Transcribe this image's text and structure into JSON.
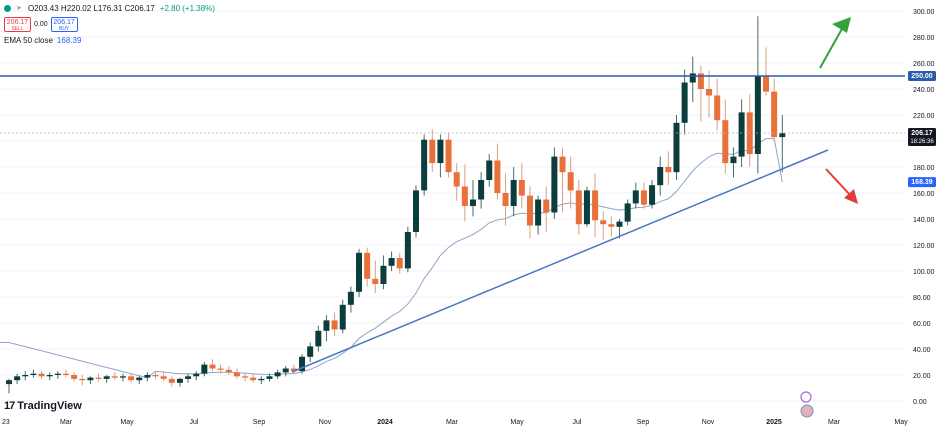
{
  "legend": {
    "ohlc": "O203.43 H220.02 L176.31 C206.17",
    "change": "+2.80 (+1.38%)",
    "sell_price": "206.17",
    "sell_label": "SELL",
    "spread": "0.00",
    "buy_price": "206.17",
    "buy_label": "BUY",
    "ema_label": "EMA 50 close",
    "ema_value": "168.39"
  },
  "branding": {
    "logo_text": "TradingView",
    "logo_mark": "17"
  },
  "price_tags": {
    "resistance": "250.00",
    "last_price": "206.17",
    "countdown": "18:26:36",
    "ema": "168.39"
  },
  "colors": {
    "up": "#089981",
    "down": "#f23645",
    "candle_up": "#0b3d3d",
    "candle_down": "#e8703a",
    "ema": "#90a4c8",
    "trend": "#4a78c2",
    "resistance": "#2a5ca8",
    "arrow_up": "#35a33a",
    "arrow_down": "#e23b3b"
  },
  "chart_data": {
    "type": "candlestick",
    "interval": "1W",
    "y_axis": {
      "ticks": [
        0,
        20,
        40,
        60,
        80,
        100,
        120,
        140,
        160,
        180,
        200,
        220,
        240,
        260,
        280,
        300
      ],
      "ylim": [
        -10,
        305
      ],
      "position": "right"
    },
    "x_axis": {
      "labels": [
        "23",
        "Mar",
        "May",
        "Jul",
        "Sep",
        "Nov",
        "2024",
        "Mar",
        "May",
        "Jul",
        "Sep",
        "Nov",
        "2025",
        "Mar",
        "May"
      ]
    },
    "resistance_level": 250,
    "last_price": 206.17,
    "ema_last": 168.39,
    "candles": [
      [
        13,
        17,
        6,
        16
      ],
      [
        16,
        21,
        13,
        19
      ],
      [
        19,
        23,
        16,
        20
      ],
      [
        20,
        24,
        18,
        21
      ],
      [
        21,
        23,
        17,
        19
      ],
      [
        19,
        22,
        16,
        20
      ],
      [
        20,
        23,
        17,
        21
      ],
      [
        21,
        24,
        18,
        20
      ],
      [
        20,
        22,
        15,
        17
      ],
      [
        17,
        20,
        12,
        16
      ],
      [
        16,
        19,
        13,
        18
      ],
      [
        18,
        21,
        15,
        17
      ],
      [
        17,
        20,
        14,
        19
      ],
      [
        19,
        22,
        16,
        18
      ],
      [
        18,
        21,
        15,
        19
      ],
      [
        19,
        21,
        14,
        16
      ],
      [
        16,
        19,
        13,
        18
      ],
      [
        18,
        22,
        15,
        20
      ],
      [
        20,
        23,
        17,
        19
      ],
      [
        19,
        22,
        15,
        17
      ],
      [
        17,
        19,
        11,
        14
      ],
      [
        14,
        18,
        11,
        17
      ],
      [
        17,
        21,
        14,
        19
      ],
      [
        19,
        23,
        16,
        21
      ],
      [
        21,
        30,
        19,
        28
      ],
      [
        28,
        32,
        23,
        25
      ],
      [
        25,
        28,
        21,
        24
      ],
      [
        24,
        27,
        20,
        22
      ],
      [
        22,
        25,
        17,
        19
      ],
      [
        19,
        22,
        15,
        18
      ],
      [
        18,
        21,
        14,
        16
      ],
      [
        16,
        19,
        13,
        17
      ],
      [
        17,
        21,
        15,
        19
      ],
      [
        19,
        24,
        17,
        22
      ],
      [
        22,
        27,
        19,
        25
      ],
      [
        25,
        28,
        21,
        23
      ],
      [
        23,
        36,
        21,
        34
      ],
      [
        34,
        45,
        30,
        42
      ],
      [
        42,
        58,
        38,
        54
      ],
      [
        54,
        66,
        46,
        62
      ],
      [
        62,
        68,
        50,
        55
      ],
      [
        55,
        78,
        52,
        74
      ],
      [
        74,
        88,
        68,
        84
      ],
      [
        84,
        117,
        80,
        114
      ],
      [
        114,
        118,
        88,
        94
      ],
      [
        94,
        108,
        83,
        90
      ],
      [
        90,
        112,
        86,
        104
      ],
      [
        104,
        115,
        100,
        110
      ],
      [
        110,
        114,
        98,
        102
      ],
      [
        102,
        134,
        99,
        130
      ],
      [
        130,
        166,
        126,
        162
      ],
      [
        162,
        205,
        158,
        201
      ],
      [
        201,
        209,
        176,
        183
      ],
      [
        183,
        205,
        172,
        201
      ],
      [
        201,
        206,
        172,
        176
      ],
      [
        176,
        183,
        154,
        165
      ],
      [
        165,
        182,
        138,
        150
      ],
      [
        150,
        170,
        142,
        155
      ],
      [
        155,
        176,
        148,
        170
      ],
      [
        170,
        190,
        165,
        185
      ],
      [
        185,
        198,
        155,
        160
      ],
      [
        160,
        175,
        135,
        150
      ],
      [
        150,
        180,
        142,
        170
      ],
      [
        170,
        183,
        148,
        158
      ],
      [
        158,
        165,
        125,
        135
      ],
      [
        135,
        158,
        128,
        155
      ],
      [
        155,
        165,
        130,
        145
      ],
      [
        145,
        195,
        140,
        188
      ],
      [
        188,
        195,
        145,
        176
      ],
      [
        176,
        188,
        148,
        162
      ],
      [
        162,
        170,
        128,
        136
      ],
      [
        136,
        165,
        134,
        162
      ],
      [
        162,
        175,
        126,
        139
      ],
      [
        139,
        146,
        124,
        136
      ],
      [
        136,
        142,
        126,
        134
      ],
      [
        134,
        140,
        125,
        138
      ],
      [
        138,
        155,
        135,
        152
      ],
      [
        152,
        168,
        148,
        162
      ],
      [
        162,
        168,
        148,
        151
      ],
      [
        151,
        170,
        148,
        166
      ],
      [
        166,
        188,
        158,
        180
      ],
      [
        180,
        192,
        166,
        176
      ],
      [
        176,
        220,
        170,
        214
      ],
      [
        214,
        255,
        205,
        245
      ],
      [
        245,
        265,
        230,
        252
      ],
      [
        252,
        258,
        215,
        240
      ],
      [
        240,
        254,
        218,
        235
      ],
      [
        235,
        248,
        208,
        216
      ],
      [
        216,
        232,
        175,
        183
      ],
      [
        183,
        195,
        172,
        188
      ],
      [
        188,
        232,
        180,
        222
      ],
      [
        222,
        236,
        180,
        190
      ],
      [
        190,
        296,
        175,
        250
      ],
      [
        250,
        272,
        235,
        238
      ],
      [
        238,
        248,
        200,
        203
      ],
      [
        203,
        220,
        176,
        206
      ]
    ]
  }
}
